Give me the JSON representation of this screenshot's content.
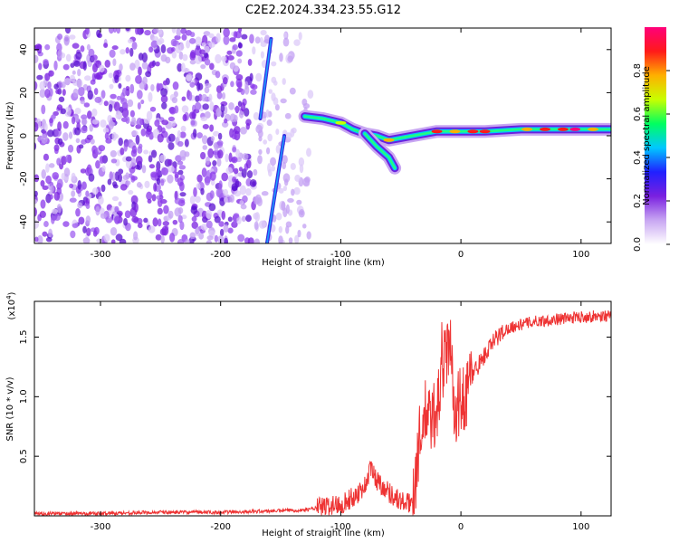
{
  "title": "C2E2.2024.334.23.55.G12",
  "chart_data": [
    {
      "type": "heatmap",
      "xlabel": "Height of straight line (km)",
      "ylabel": "Frequency (Hz)",
      "xlim": [
        -355,
        125
      ],
      "ylim": [
        -50,
        50
      ],
      "xticks": [
        -300,
        -200,
        -100,
        0,
        100
      ],
      "xtick_labels": [
        "-300",
        "-200",
        "-100",
        "0",
        "100"
      ],
      "yticks": [
        -40,
        -20,
        0,
        20,
        40
      ],
      "ytick_labels": [
        "-40",
        "-20",
        "0",
        "20",
        "40"
      ],
      "colorbar": {
        "label": "Normalized spectral amplitude",
        "range": [
          0,
          1
        ],
        "ticks": [
          0,
          0.2,
          0.4,
          0.6,
          0.8
        ],
        "tick_labels": [
          "0.0",
          "0.2",
          "0.4",
          "0.6",
          "0.8"
        ],
        "colors": [
          "#ffffff",
          "#c8a6f2",
          "#7a20e0",
          "#2020ff",
          "#00c8ff",
          "#00ff60",
          "#c8ff00",
          "#ffb000",
          "#ff1a1a",
          "#ff007a"
        ]
      },
      "noise_region_x": [
        -355,
        -125
      ],
      "streaks": [
        {
          "name": "upper-streak",
          "points": [
            [
              -167,
              8
            ],
            [
              -158,
              45
            ]
          ]
        },
        {
          "name": "lower-streak",
          "points": [
            [
              -147,
              0
            ],
            [
              -162,
              -52
            ]
          ]
        }
      ],
      "signal_track": [
        [
          -130,
          9
        ],
        [
          -115,
          8
        ],
        [
          -100,
          6
        ],
        [
          -90,
          3
        ],
        [
          -80,
          1
        ],
        [
          -70,
          0
        ],
        [
          -60,
          -2
        ],
        [
          -50,
          -1
        ],
        [
          -40,
          0
        ],
        [
          -30,
          1
        ],
        [
          -20,
          2
        ],
        [
          -10,
          2
        ],
        [
          0,
          2
        ],
        [
          20,
          2
        ],
        [
          50,
          3
        ],
        [
          80,
          3
        ],
        [
          100,
          3
        ],
        [
          125,
          3
        ]
      ],
      "signal_branch": [
        [
          -80,
          1
        ],
        [
          -70,
          -5
        ],
        [
          -60,
          -10
        ],
        [
          -55,
          -15
        ]
      ]
    },
    {
      "type": "line",
      "xlabel": "Height of straight line (km)",
      "ylabel": "SNR (10 * v/v)",
      "multiplier_label": "(x10",
      "multiplier_exp": "4",
      "xlim": [
        -355,
        125
      ],
      "ylim": [
        0,
        1.8
      ],
      "xticks": [
        -300,
        -200,
        -100,
        0,
        100
      ],
      "xtick_labels": [
        "-300",
        "-200",
        "-100",
        "0",
        "100"
      ],
      "yticks": [
        0.5,
        1.0,
        1.5
      ],
      "ytick_labels": [
        "0.5",
        "1.0",
        "1.5"
      ],
      "color": "#ee3333",
      "trend": [
        [
          -355,
          0.02
        ],
        [
          -300,
          0.02
        ],
        [
          -250,
          0.03
        ],
        [
          -200,
          0.03
        ],
        [
          -160,
          0.04
        ],
        [
          -130,
          0.05
        ],
        [
          -110,
          0.08
        ],
        [
          -100,
          0.1
        ],
        [
          -90,
          0.15
        ],
        [
          -80,
          0.25
        ],
        [
          -75,
          0.4
        ],
        [
          -70,
          0.3
        ],
        [
          -60,
          0.2
        ],
        [
          -50,
          0.12
        ],
        [
          -42,
          0.1
        ],
        [
          -38,
          0.3
        ],
        [
          -35,
          0.6
        ],
        [
          -30,
          0.85
        ],
        [
          -25,
          0.8
        ],
        [
          -20,
          0.9
        ],
        [
          -15,
          1.2
        ],
        [
          -12,
          1.4
        ],
        [
          -8,
          1.2
        ],
        [
          -5,
          0.9
        ],
        [
          0,
          0.95
        ],
        [
          5,
          1.05
        ],
        [
          10,
          1.2
        ],
        [
          20,
          1.35
        ],
        [
          30,
          1.5
        ],
        [
          40,
          1.58
        ],
        [
          60,
          1.63
        ],
        [
          80,
          1.65
        ],
        [
          100,
          1.67
        ],
        [
          125,
          1.68
        ]
      ]
    }
  ]
}
